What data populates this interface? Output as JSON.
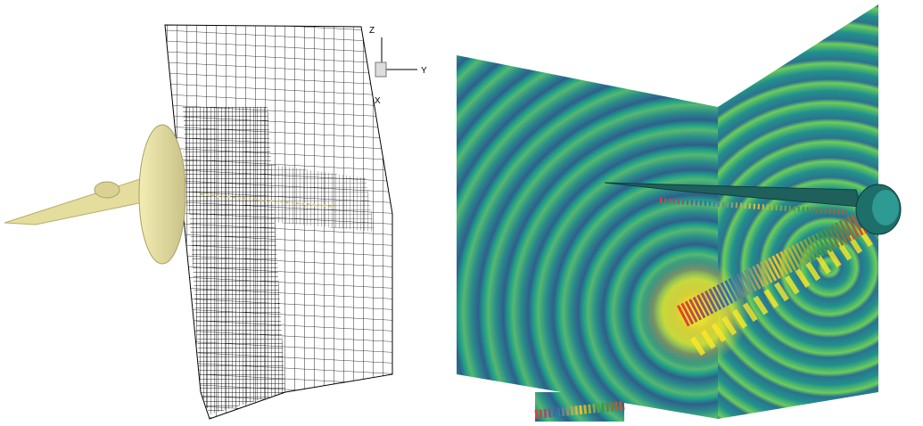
{
  "axis_triad": {
    "z": "Z",
    "y": "Y",
    "x": "X"
  }
}
